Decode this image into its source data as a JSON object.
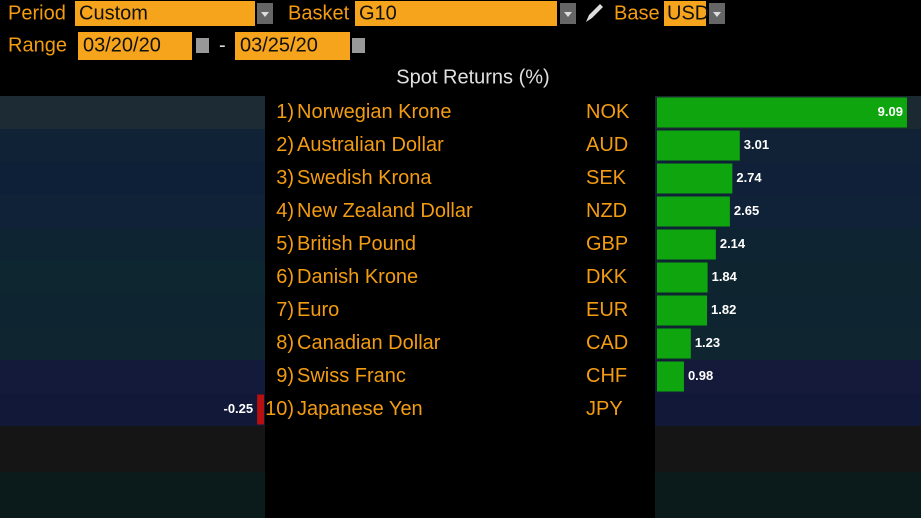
{
  "header": {
    "period_label": "Period",
    "period": "Custom",
    "basket_label": "Basket",
    "basket": "G10",
    "base_label": "Base",
    "base": "USD",
    "range_label": "Range",
    "range_start": "03/20/20",
    "range_separator": "-",
    "range_end": "03/25/20"
  },
  "title": "Spot Returns (%)",
  "rows": [
    {
      "rank": "1)",
      "name": "Norwegian Krone",
      "code": "NOK",
      "value": 9.09
    },
    {
      "rank": "2)",
      "name": "Australian Dollar",
      "code": "AUD",
      "value": 3.01
    },
    {
      "rank": "3)",
      "name": "Swedish Krona",
      "code": "SEK",
      "value": 2.74
    },
    {
      "rank": "4)",
      "name": "New Zealand Dollar",
      "code": "NZD",
      "value": 2.65
    },
    {
      "rank": "5)",
      "name": "British Pound",
      "code": "GBP",
      "value": 2.14
    },
    {
      "rank": "6)",
      "name": "Danish Krone",
      "code": "DKK",
      "value": 1.84
    },
    {
      "rank": "7)",
      "name": "Euro",
      "code": "EUR",
      "value": 1.82
    },
    {
      "rank": "8)",
      "name": "Canadian Dollar",
      "code": "CAD",
      "value": 1.23
    },
    {
      "rank": "9)",
      "name": "Swiss Franc",
      "code": "CHF",
      "value": 0.98
    },
    {
      "rank": "10)",
      "name": "Japanese Yen",
      "code": "JPY",
      "value": -0.25
    }
  ],
  "bar_colors": {
    "positive": "#0fa50f",
    "negative": "#b81010"
  }
}
